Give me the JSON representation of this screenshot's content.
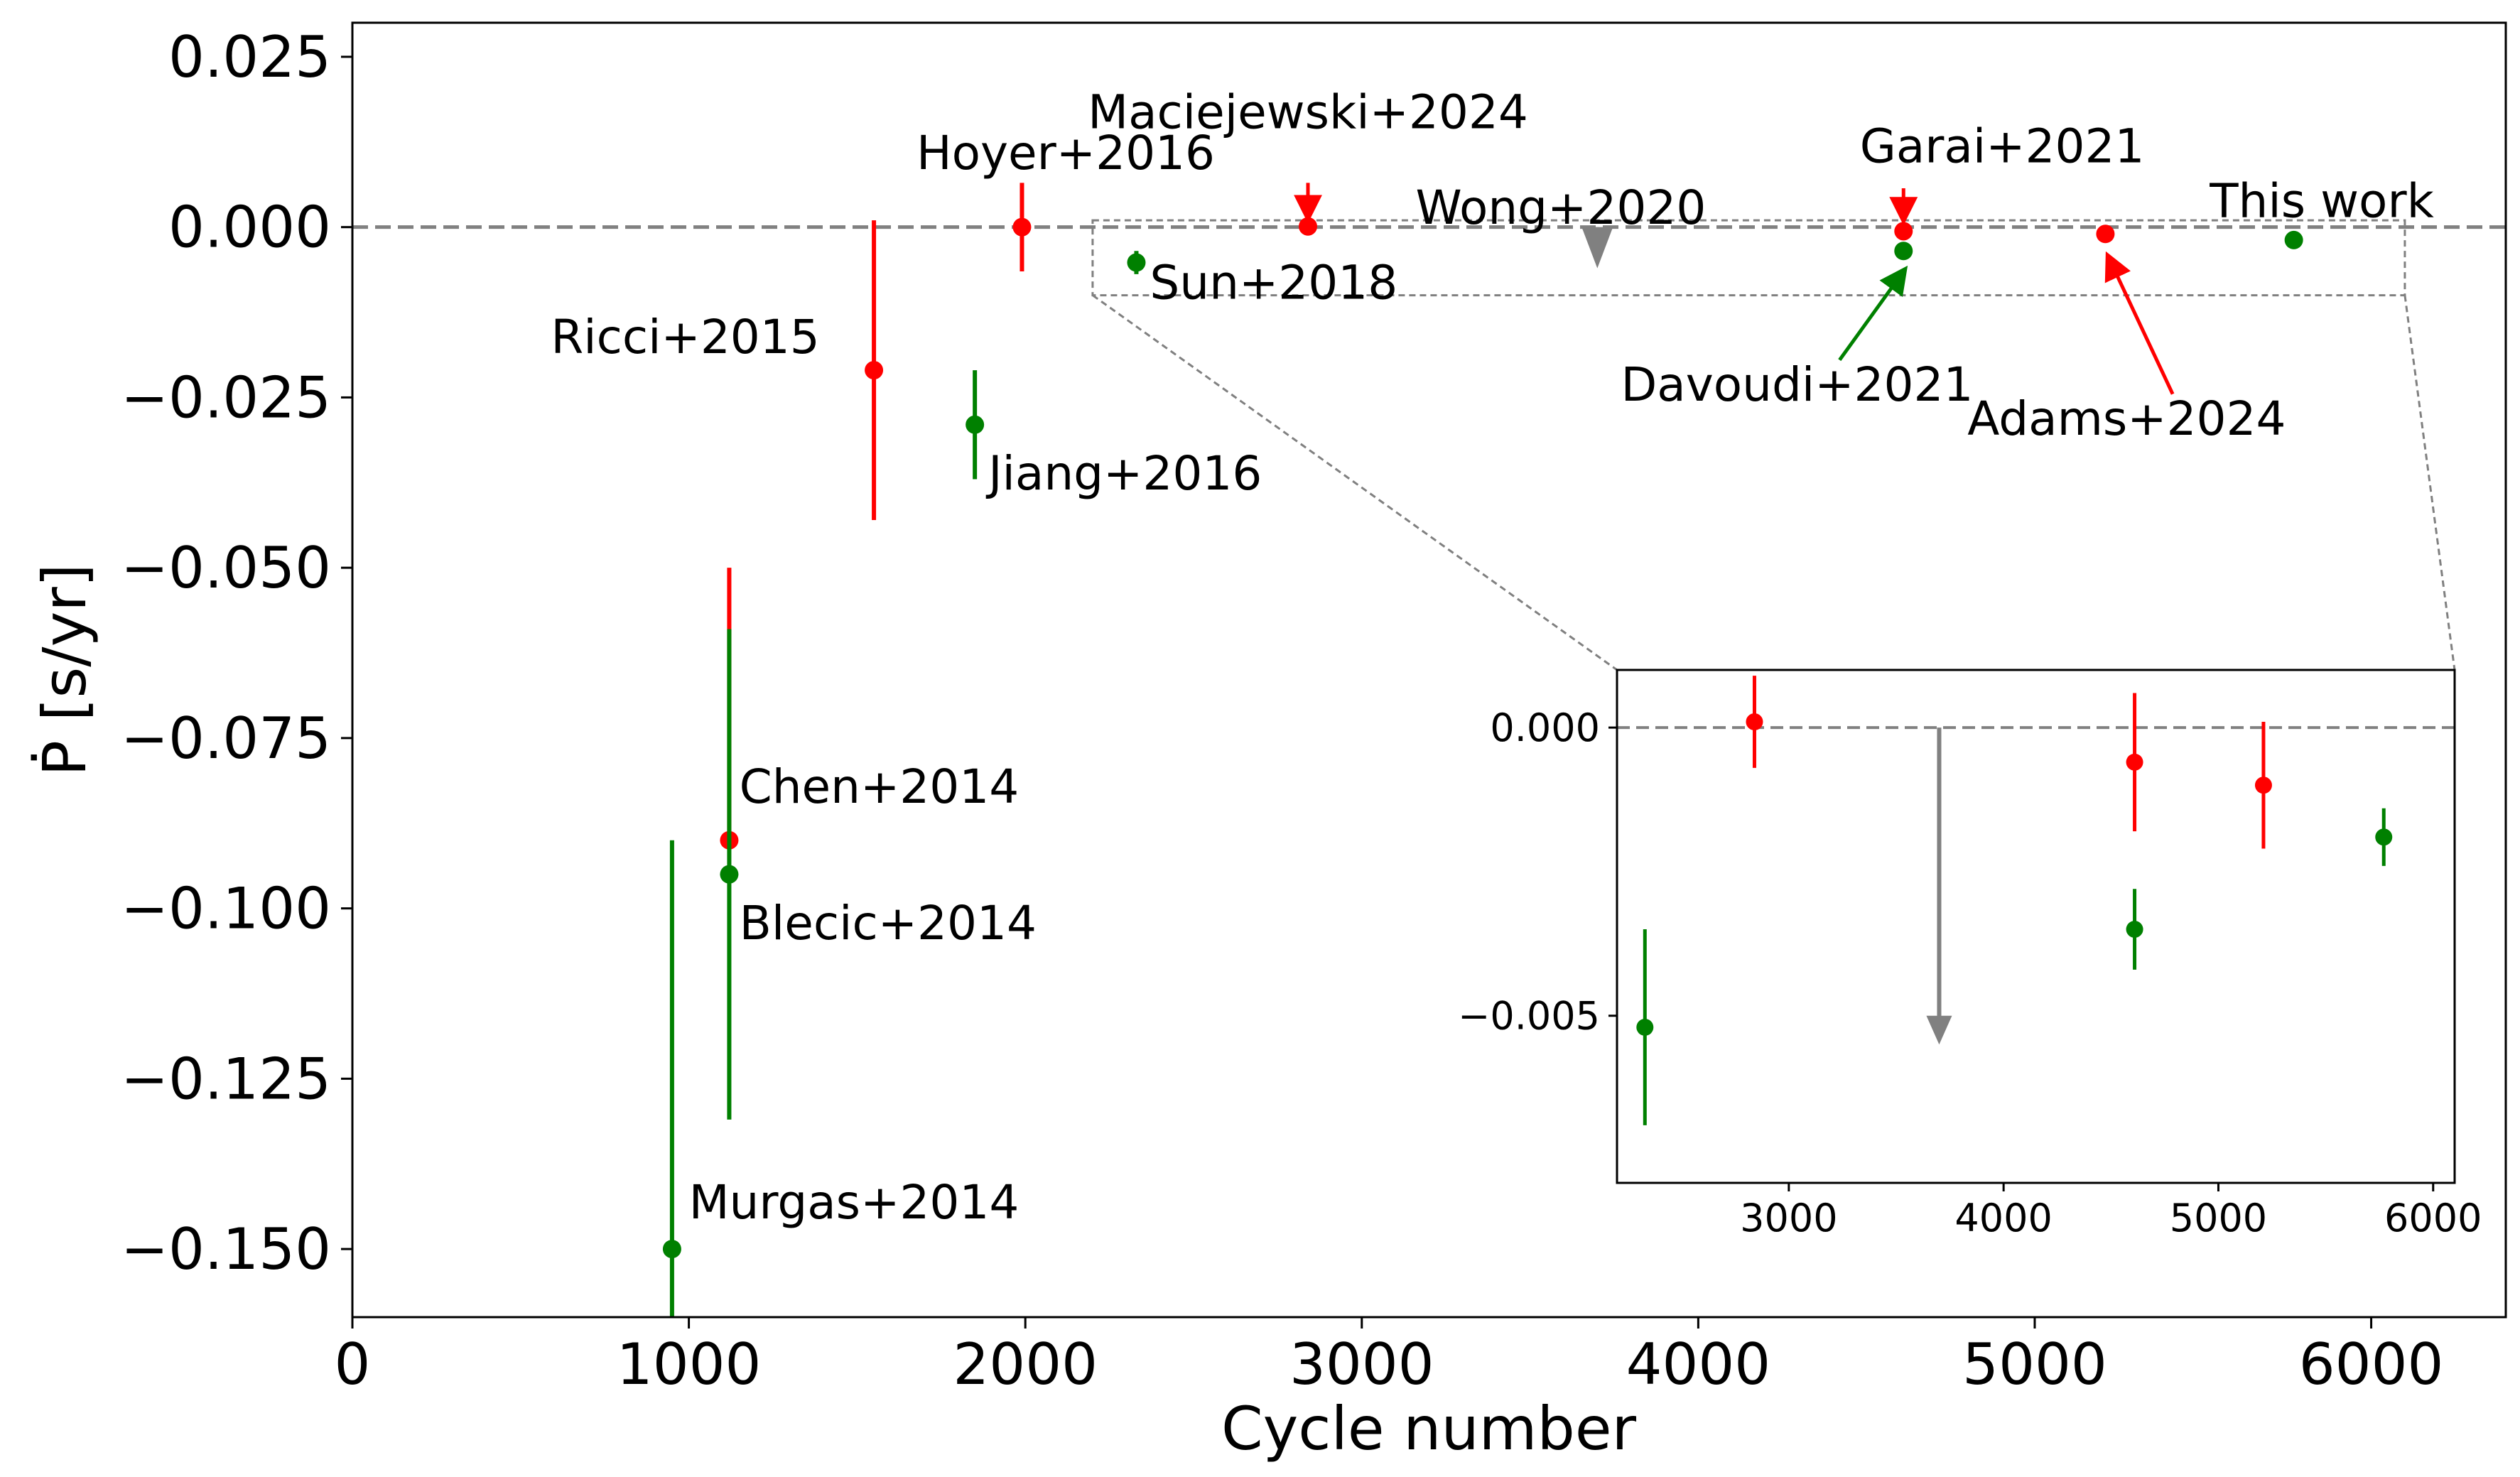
{
  "chart_data": [
    {
      "type": "scatter",
      "title": "",
      "xlabel": "Cycle number",
      "ylabel": "Ṗ [s/yr]",
      "xlim": [
        0,
        6400
      ],
      "ylim": [
        -0.16,
        0.03
      ],
      "x_ticks": [
        0,
        1000,
        2000,
        3000,
        4000,
        5000,
        6000
      ],
      "x_tick_labels": [
        "0",
        "1000",
        "2000",
        "3000",
        "4000",
        "5000",
        "6000"
      ],
      "y_ticks": [
        0.025,
        0.0,
        -0.025,
        -0.05,
        -0.075,
        -0.1,
        -0.125,
        -0.15
      ],
      "y_tick_labels": [
        "0.025",
        "0.000",
        "−0.025",
        "−0.050",
        "−0.075",
        "−0.100",
        "−0.125",
        "−0.150"
      ],
      "reference_line": 0.0,
      "grid": false,
      "series": [
        {
          "color": "#ff0000",
          "points": [
            {
              "label": "Chen+2014",
              "x": 1120,
              "y": -0.09,
              "yerr_low": -0.09,
              "yerr_high": -0.05
            },
            {
              "label": "Ricci+2015",
              "x": 1550,
              "y": -0.021,
              "yerr_low": -0.043,
              "yerr_high": 0.001
            },
            {
              "label": "Hoyer+2016",
              "x": 1990,
              "y": 0.0,
              "yerr_low": -0.0065,
              "yerr_high": 0.0065
            },
            {
              "label": "Maciejewski+2024",
              "x": 2840,
              "y": 0.0001,
              "yerr_low": -0.0007,
              "yerr_high": 0.0009
            },
            {
              "label": "Garai+2021",
              "x": 4610,
              "y": -0.0006,
              "yerr_low": -0.0018,
              "yerr_high": 0.0006
            },
            {
              "label": "Adams+2024",
              "x": 5210,
              "y": -0.001,
              "yerr_low": -0.0021,
              "yerr_high": 0.0001
            }
          ]
        },
        {
          "color": "#008000",
          "points": [
            {
              "label": "Murgas+2014",
              "x": 950,
              "y": -0.15,
              "yerr_low": -0.16,
              "yerr_high": -0.09
            },
            {
              "label": "Blecic+2014",
              "x": 1120,
              "y": -0.095,
              "yerr_low": -0.131,
              "yerr_high": -0.059
            },
            {
              "label": "Jiang+2016",
              "x": 1850,
              "y": -0.029,
              "yerr_low": -0.037,
              "yerr_high": -0.021
            },
            {
              "label": "Sun+2018",
              "x": 2330,
              "y": -0.0052,
              "yerr_low": -0.0069,
              "yerr_high": -0.0035
            },
            {
              "label": "Davoudi+2021",
              "x": 4610,
              "y": -0.0035,
              "yerr_low": -0.0042,
              "yerr_high": -0.0028
            },
            {
              "label": "This work",
              "x": 5770,
              "y": -0.0019,
              "yerr_low": -0.0024,
              "yerr_high": -0.0014
            }
          ]
        }
      ],
      "upper_limit": {
        "label": "Wong+2020",
        "x": 3700,
        "color": "#808080"
      },
      "annotations": [
        {
          "text": "Murgas+2014"
        },
        {
          "text": "Chen+2014"
        },
        {
          "text": "Blecic+2014"
        },
        {
          "text": "Ricci+2015"
        },
        {
          "text": "Jiang+2016"
        },
        {
          "text": "Hoyer+2016"
        },
        {
          "text": "Sun+2018"
        },
        {
          "text": "Maciejewski+2024"
        },
        {
          "text": "Wong+2020"
        },
        {
          "text": "Garai+2021"
        },
        {
          "text": "Davoudi+2021"
        },
        {
          "text": "Adams+2024"
        },
        {
          "text": "This work"
        }
      ]
    },
    {
      "type": "scatter",
      "title": "",
      "xlabel": "",
      "ylabel": "",
      "xlim": [
        2200,
        6100
      ],
      "ylim": [
        -0.0079,
        0.001
      ],
      "x_ticks": [
        3000,
        4000,
        5000,
        6000
      ],
      "x_tick_labels": [
        "3000",
        "4000",
        "5000",
        "6000"
      ],
      "y_ticks": [
        0.0,
        -0.005
      ],
      "y_tick_labels": [
        "0.000",
        "−0.005"
      ],
      "reference_line": 0.0,
      "upper_limit": {
        "x": 3700,
        "y_from": 0.0,
        "y_to": -0.0055,
        "color": "#808080"
      },
      "series_ref": "inset shows zoom of points with x >= 2200 from main series"
    }
  ]
}
